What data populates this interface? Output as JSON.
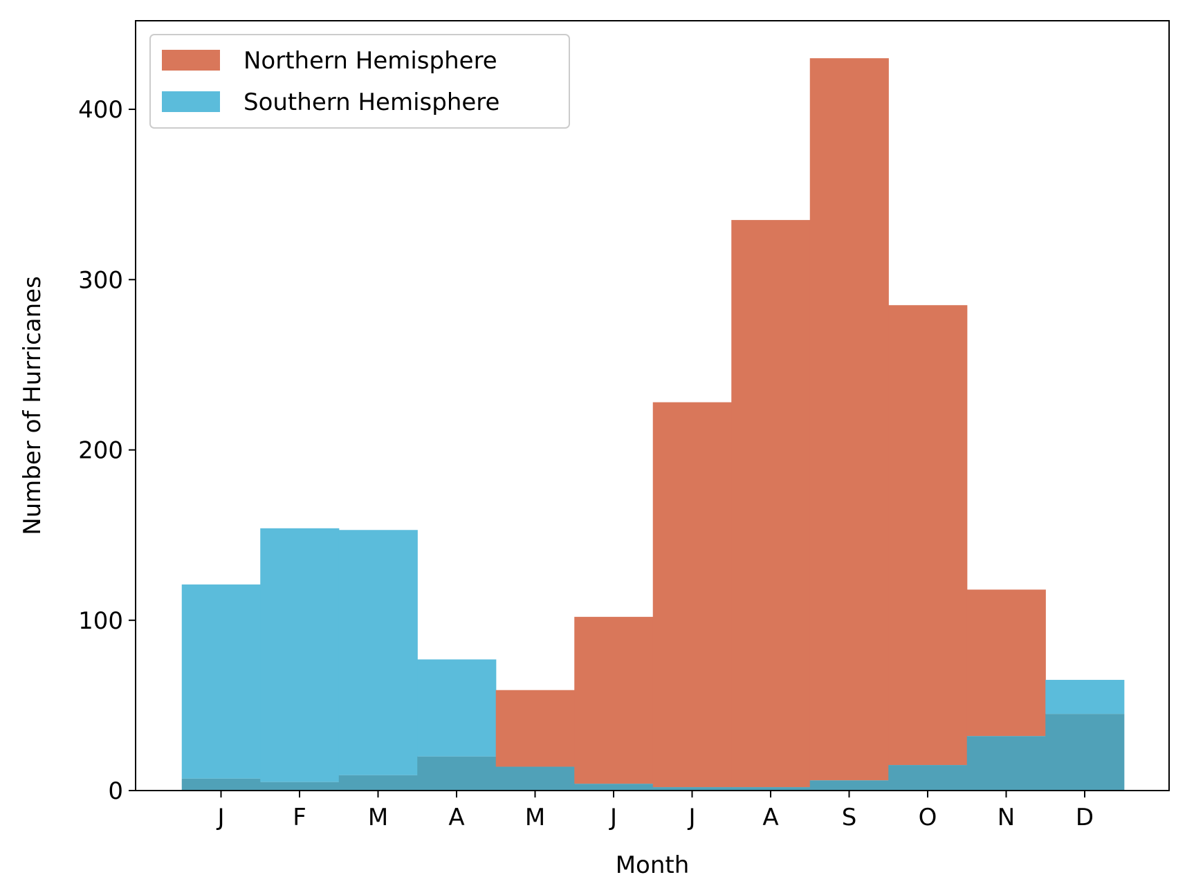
{
  "chart_data": {
    "type": "bar",
    "categories": [
      "J",
      "F",
      "M",
      "A",
      "M",
      "J",
      "J",
      "A",
      "S",
      "O",
      "N",
      "D"
    ],
    "xlabel": "Month",
    "ylabel": "Number of Hurricanes",
    "ylim": [
      0,
      452
    ],
    "yticks": [
      0,
      100,
      200,
      300,
      400
    ],
    "grid": false,
    "legend_position": "top-left",
    "series": [
      {
        "name": "Northern Hemisphere",
        "color": "#d9775a",
        "values": [
          7,
          5,
          9,
          20,
          59,
          102,
          228,
          335,
          430,
          285,
          118,
          45
        ]
      },
      {
        "name": "Southern Hemisphere",
        "color": "#5bbcdb",
        "values": [
          121,
          154,
          153,
          77,
          14,
          4,
          2,
          2,
          6,
          15,
          32,
          65
        ]
      }
    ],
    "overlap_color": "#50a1b8"
  }
}
